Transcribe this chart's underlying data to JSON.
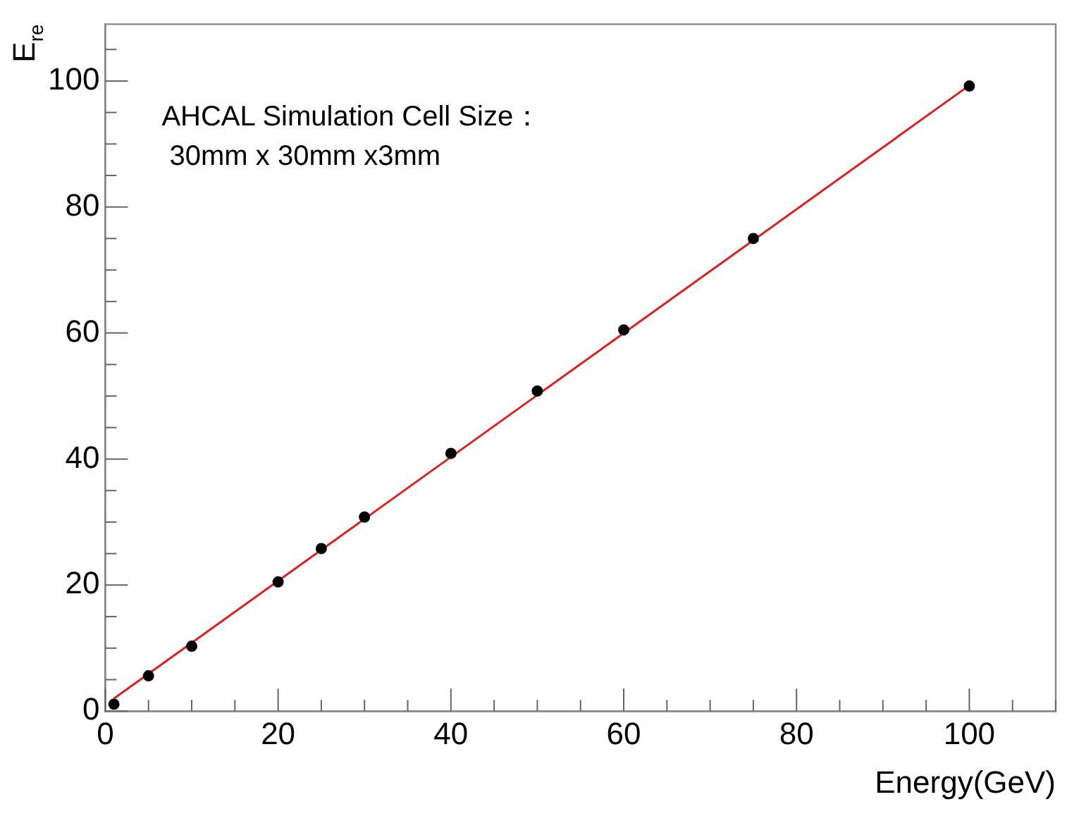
{
  "chart_data": {
    "type": "scatter",
    "xlabel": "Energy(GeV)",
    "ylabel": "E$_{re}$",
    "annotations": [
      "AHCAL Simulation Cell Size：",
      " 30mm x 30mm x3mm"
    ],
    "series": [
      {
        "marker": "circle",
        "color": "#000000",
        "x": [
          1,
          5,
          10,
          20,
          25,
          30,
          40,
          50,
          60,
          75,
          100
        ],
        "values": [
          1.1,
          5.6,
          10.3,
          20.5,
          25.8,
          30.8,
          40.9,
          50.8,
          60.5,
          75,
          99.2
        ]
      },
      {
        "type": "line",
        "marker": "none",
        "color": "#e02020",
        "x": [
          1,
          100
        ],
        "values": [
          2.0,
          99.3
        ]
      }
    ],
    "xlim": [
      0,
      110
    ],
    "ylim": [
      0,
      109
    ],
    "xticks": [
      0,
      {
        "value": 5,
        "label": null
      },
      {
        "value": 10,
        "label": null
      },
      {
        "value": 15,
        "label": null
      },
      20,
      {
        "value": 25,
        "label": null
      },
      {
        "value": 30,
        "label": null
      },
      {
        "value": 35,
        "label": null
      },
      40,
      {
        "value": 45,
        "label": null
      },
      {
        "value": 50,
        "label": null
      },
      {
        "value": 55,
        "label": null
      },
      60,
      {
        "value": 65,
        "label": null
      },
      {
        "value": 70,
        "label": null
      },
      {
        "value": 75,
        "label": null
      },
      80,
      {
        "value": 85,
        "label": null
      },
      {
        "value": 90,
        "label": null
      },
      {
        "value": 95,
        "label": null
      },
      100,
      {
        "value": 105,
        "label": null
      },
      {
        "value": 110,
        "label": null
      }
    ],
    "yticks": [
      0,
      {
        "value": 5,
        "label": null
      },
      {
        "value": 10,
        "label": null
      },
      {
        "value": 15,
        "label": null
      },
      20,
      {
        "value": 25,
        "label": null
      },
      {
        "value": 30,
        "label": null
      },
      {
        "value": 35,
        "label": null
      },
      40,
      {
        "value": 45,
        "label": null
      },
      {
        "value": 50,
        "label": null
      },
      {
        "value": 55,
        "label": null
      },
      60,
      {
        "value": 65,
        "label": null
      },
      {
        "value": 70,
        "label": null
      },
      {
        "value": 75,
        "label": null
      },
      80,
      {
        "value": 85,
        "label": null
      },
      {
        "value": 90,
        "label": null
      },
      {
        "value": 95,
        "label": null
      },
      100,
      {
        "value": 105,
        "label": null
      }
    ],
    "grid": false,
    "legend": false,
    "line_style": "solid"
  }
}
